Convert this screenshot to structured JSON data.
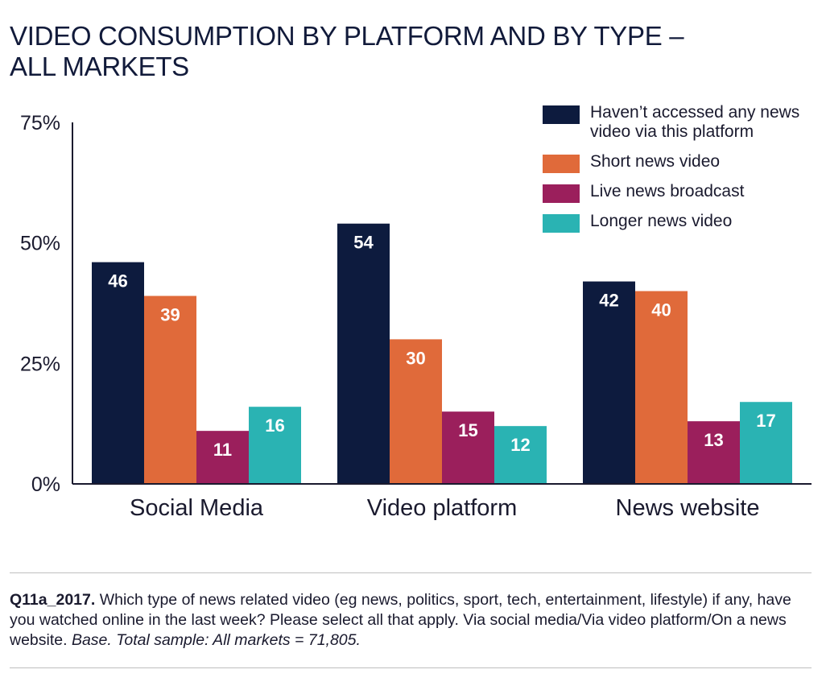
{
  "title_lines": [
    "VIDEO CONSUMPTION BY PLATFORM AND BY TYPE –",
    "ALL MARKETS"
  ],
  "chart_data": {
    "type": "bar",
    "categories": [
      "Social Media",
      "Video platform",
      "News website"
    ],
    "series": [
      {
        "name": "Haven’t accessed any news video via this platform",
        "values": [
          46,
          54,
          42
        ],
        "color": "#0d1b3e"
      },
      {
        "name": "Short news video",
        "values": [
          39,
          30,
          40
        ],
        "color": "#e06a3a"
      },
      {
        "name": "Live news broadcast",
        "values": [
          11,
          15,
          13
        ],
        "color": "#9b1f5c"
      },
      {
        "name": "Longer news video",
        "values": [
          16,
          12,
          17
        ],
        "color": "#2ab3b3"
      }
    ],
    "yticks": [
      0,
      25,
      50,
      75
    ],
    "ytick_labels": [
      "0%",
      "25%",
      "50%",
      "75%"
    ],
    "ylim": [
      0,
      75
    ],
    "legend_position": "top-right",
    "grid": false
  },
  "footnote": {
    "question_id": "Q11a_2017.",
    "question_text": " Which type of news related video (eg news, politics, sport, tech, entertainment, lifestyle) if any, have you watched online in the last week? Please select all that apply. Via social media/Via video platform/On a news website. ",
    "base_text": "Base. Total sample: All markets = 71,805."
  }
}
